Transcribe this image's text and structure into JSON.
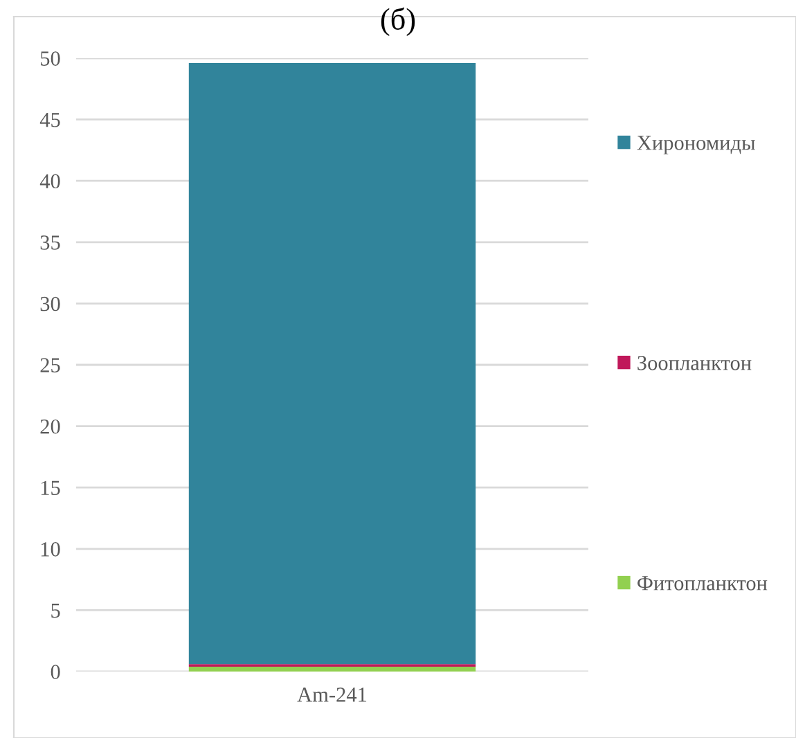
{
  "chart_data": {
    "type": "bar",
    "title": "(б)",
    "stacked": true,
    "categories": [
      "Am-241"
    ],
    "series": [
      {
        "name": "Фитопланктон",
        "color": "#92d050",
        "values": [
          0.4
        ]
      },
      {
        "name": "Зоопланктон",
        "color": "#c0185a",
        "values": [
          0.2
        ]
      },
      {
        "name": "Хирономиды",
        "color": "#31849b",
        "values": [
          49.0
        ]
      }
    ],
    "ylim": [
      0,
      50
    ],
    "yticks": [
      0,
      5,
      10,
      15,
      20,
      25,
      30,
      35,
      40,
      45,
      50
    ],
    "grid": "y",
    "legend": "right"
  }
}
